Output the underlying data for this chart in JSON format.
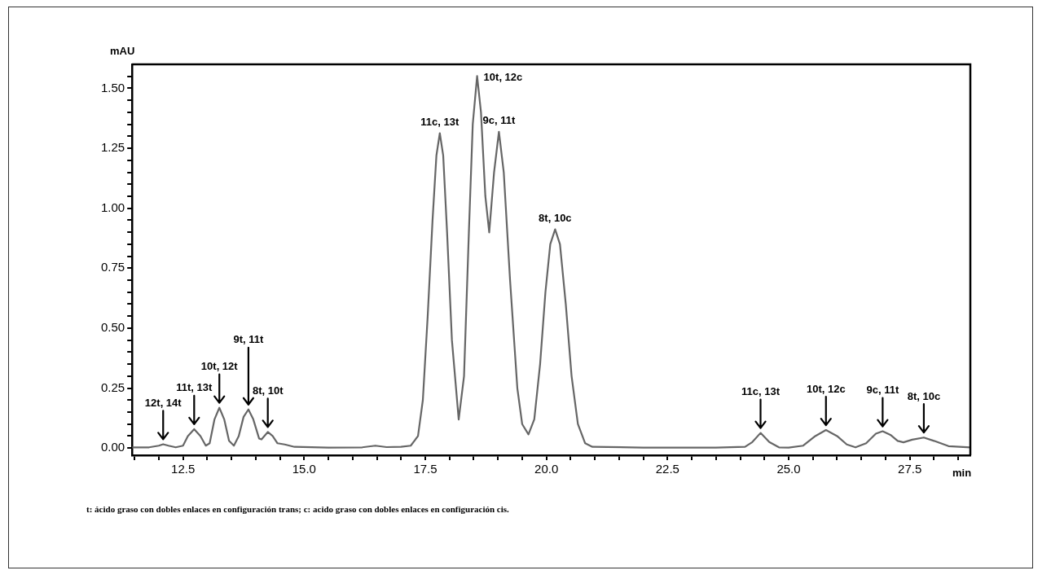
{
  "chart_data": {
    "type": "line",
    "ylabel": "mAU",
    "xlabel": "min",
    "xlim": [
      11.45,
      28.75
    ],
    "ylim": [
      -0.03,
      1.6
    ],
    "xticks": [
      {
        "value": 11.5,
        "label": null
      },
      {
        "value": 12,
        "label": null
      },
      12.5,
      {
        "value": 13,
        "label": null
      },
      {
        "value": 13.5,
        "label": null
      },
      {
        "value": 14,
        "label": null
      },
      {
        "value": 14.5,
        "label": null
      },
      {
        "value": 15,
        "label": "15.0"
      },
      {
        "value": 15.5,
        "label": null
      },
      {
        "value": 16,
        "label": null
      },
      {
        "value": 16.5,
        "label": null
      },
      {
        "value": 17,
        "label": null
      },
      17.5,
      {
        "value": 18,
        "label": null
      },
      {
        "value": 18.5,
        "label": null
      },
      {
        "value": 19,
        "label": null
      },
      {
        "value": 19.5,
        "label": null
      },
      {
        "value": 20,
        "label": "20.0"
      },
      {
        "value": 20.5,
        "label": null
      },
      {
        "value": 21,
        "label": null
      },
      {
        "value": 21.5,
        "label": null
      },
      {
        "value": 22,
        "label": null
      },
      22.5,
      {
        "value": 23,
        "label": null
      },
      {
        "value": 23.5,
        "label": null
      },
      {
        "value": 24,
        "label": null
      },
      {
        "value": 24.5,
        "label": null
      },
      {
        "value": 25,
        "label": "25.0"
      },
      {
        "value": 25.5,
        "label": null
      },
      {
        "value": 26,
        "label": null
      },
      {
        "value": 26.5,
        "label": null
      },
      {
        "value": 27,
        "label": null
      },
      27.5,
      {
        "value": 28,
        "label": null
      },
      {
        "value": 28.5,
        "label": null
      }
    ],
    "yticks": [
      {
        "value": 0,
        "label": "0.00"
      },
      {
        "value": 0.05,
        "label": null
      },
      {
        "value": 0.1,
        "label": null
      },
      {
        "value": 0.15,
        "label": null
      },
      {
        "value": 0.2,
        "label": null
      },
      {
        "value": 0.25,
        "label": "0.25"
      },
      {
        "value": 0.3,
        "label": null
      },
      {
        "value": 0.35,
        "label": null
      },
      {
        "value": 0.4,
        "label": null
      },
      {
        "value": 0.45,
        "label": null
      },
      {
        "value": 0.5,
        "label": "0.50"
      },
      {
        "value": 0.55,
        "label": null
      },
      {
        "value": 0.6,
        "label": null
      },
      {
        "value": 0.65,
        "label": null
      },
      {
        "value": 0.7,
        "label": null
      },
      {
        "value": 0.75,
        "label": "0.75"
      },
      {
        "value": 0.8,
        "label": null
      },
      {
        "value": 0.85,
        "label": null
      },
      {
        "value": 0.9,
        "label": null
      },
      {
        "value": 0.95,
        "label": null
      },
      {
        "value": 1,
        "label": "1.00"
      },
      {
        "value": 1.05,
        "label": null
      },
      {
        "value": 1.1,
        "label": null
      },
      {
        "value": 1.15,
        "label": null
      },
      {
        "value": 1.2,
        "label": null
      },
      {
        "value": 1.25,
        "label": "1.25"
      },
      {
        "value": 1.3,
        "label": null
      },
      {
        "value": 1.35,
        "label": null
      },
      {
        "value": 1.4,
        "label": null
      },
      {
        "value": 1.45,
        "label": null
      },
      {
        "value": 1.5,
        "label": "1.50"
      },
      {
        "value": 1.55,
        "label": null
      }
    ],
    "grid": false,
    "legend": false,
    "marker": "none",
    "line_style": "solid",
    "series": [
      {
        "color": "#666666",
        "x": [
          11.45,
          11.8,
          12.0,
          12.09,
          12.2,
          12.35,
          12.5,
          12.6,
          12.73,
          12.86,
          12.97,
          13.05,
          13.15,
          13.25,
          13.35,
          13.45,
          13.55,
          13.65,
          13.75,
          13.85,
          13.95,
          14.07,
          14.12,
          14.25,
          14.35,
          14.45,
          14.6,
          14.8,
          15.5,
          16.2,
          16.47,
          16.7,
          17.0,
          17.2,
          17.35,
          17.45,
          17.55,
          17.65,
          17.73,
          17.8,
          17.87,
          17.95,
          18.05,
          18.19,
          18.3,
          18.4,
          18.48,
          18.57,
          18.65,
          18.74,
          18.82,
          18.92,
          19.02,
          19.12,
          19.25,
          19.4,
          19.5,
          19.63,
          19.75,
          19.87,
          19.98,
          20.08,
          20.18,
          20.28,
          20.4,
          20.52,
          20.65,
          20.8,
          20.95,
          22.0,
          23.5,
          24.1,
          24.25,
          24.42,
          24.6,
          24.8,
          25.0,
          25.3,
          25.55,
          25.77,
          26.0,
          26.2,
          26.38,
          26.6,
          26.8,
          26.94,
          27.1,
          27.25,
          27.37,
          27.55,
          27.79,
          28.0,
          28.3,
          28.75
        ],
        "values": [
          0.003,
          0.003,
          0.01,
          0.016,
          0.01,
          0.003,
          0.01,
          0.05,
          0.079,
          0.05,
          0.01,
          0.02,
          0.12,
          0.168,
          0.12,
          0.03,
          0.01,
          0.05,
          0.13,
          0.161,
          0.12,
          0.04,
          0.036,
          0.067,
          0.05,
          0.02,
          0.015,
          0.005,
          0.002,
          0.003,
          0.01,
          0.004,
          0.005,
          0.01,
          0.05,
          0.2,
          0.55,
          0.95,
          1.22,
          1.313,
          1.22,
          0.9,
          0.45,
          0.119,
          0.3,
          0.9,
          1.35,
          1.551,
          1.4,
          1.05,
          0.899,
          1.15,
          1.319,
          1.15,
          0.7,
          0.25,
          0.1,
          0.057,
          0.12,
          0.35,
          0.65,
          0.85,
          0.912,
          0.85,
          0.6,
          0.3,
          0.1,
          0.02,
          0.005,
          0.002,
          0.002,
          0.005,
          0.025,
          0.063,
          0.025,
          0.003,
          0.002,
          0.01,
          0.05,
          0.075,
          0.05,
          0.015,
          0.003,
          0.02,
          0.06,
          0.07,
          0.055,
          0.03,
          0.024,
          0.035,
          0.044,
          0.03,
          0.008,
          0.003
        ]
      }
    ],
    "annotations": [
      {
        "text": "12t, 14t",
        "x": 12.09,
        "y": 0.016
      },
      {
        "text": "11t, 13t",
        "x": 12.73,
        "y": 0.079
      },
      {
        "text": "10t, 12t",
        "x": 13.25,
        "y": 0.168
      },
      {
        "text": "9t, 11t",
        "x": 13.85,
        "y": 0.161
      },
      {
        "text": "8t, 10t",
        "x": 14.25,
        "y": 0.067
      },
      {
        "text": "11c, 13t",
        "x": 17.8,
        "y": 1.313
      },
      {
        "text": "10t, 12c",
        "x": 18.57,
        "y": 1.551
      },
      {
        "text": "9c, 11t",
        "x": 19.02,
        "y": 1.319
      },
      {
        "text": "8t, 10c",
        "x": 20.18,
        "y": 0.912
      },
      {
        "text": "11c, 13t",
        "x": 24.42,
        "y": 0.063
      },
      {
        "text": "10t, 12c",
        "x": 25.77,
        "y": 0.075
      },
      {
        "text": "9c, 11t",
        "x": 26.94,
        "y": 0.07
      },
      {
        "text": "8t, 10c",
        "x": 27.79,
        "y": 0.044
      },
      "t: ácido graso con dobles enlaces en configuración trans; c: acido graso con dobles enlaces en configuración cis."
    ]
  }
}
